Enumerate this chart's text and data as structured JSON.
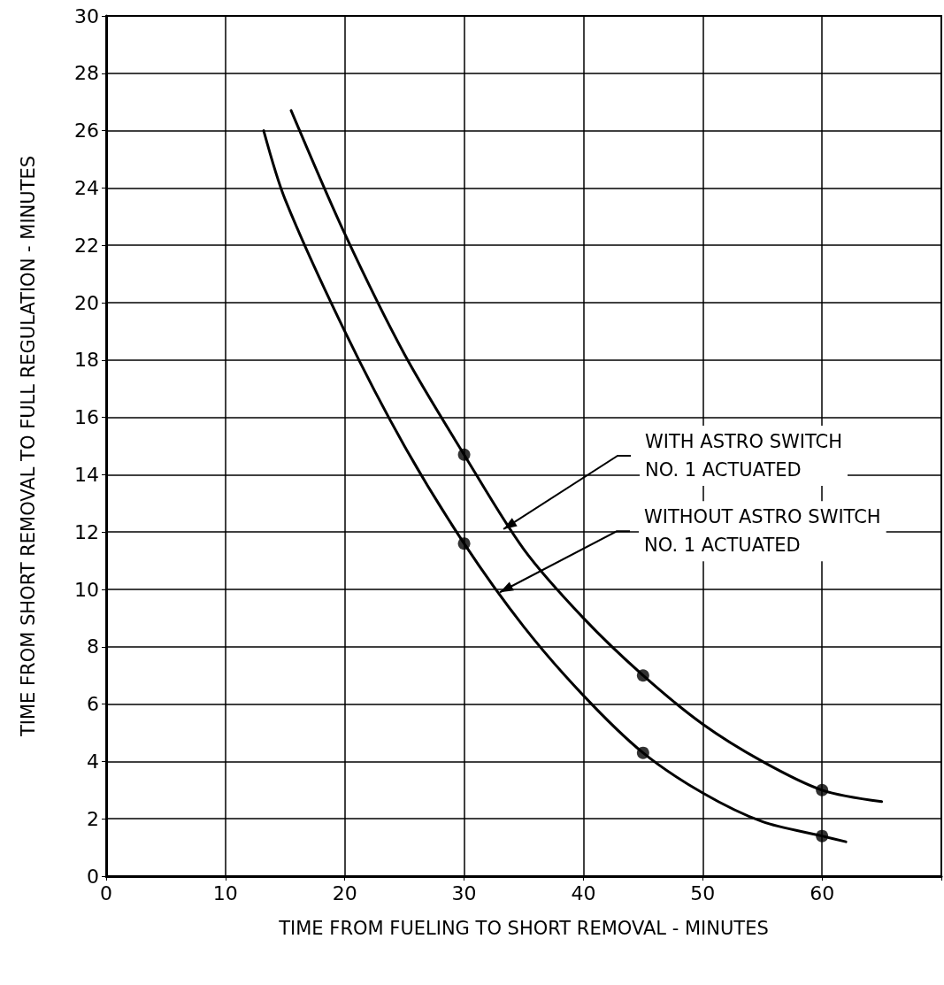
{
  "chart_data": {
    "type": "line",
    "xlabel": "TIME FROM FUELING TO SHORT REMOVAL - MINUTES",
    "ylabel": "TIME FROM SHORT REMOVAL TO FULL REGULATION - MINUTES",
    "xlim": [
      0,
      70
    ],
    "xticks": [
      0,
      10,
      20,
      30,
      40,
      50,
      60,
      {
        "value": 70,
        "label": null
      }
    ],
    "ylim": [
      0,
      30
    ],
    "yticks": [
      0,
      2,
      4,
      6,
      8,
      10,
      12,
      14,
      16,
      18,
      20,
      22,
      24,
      26,
      28,
      30
    ],
    "grid": true,
    "series": [
      {
        "color": "#000000",
        "marker": "none",
        "x": [
          15.5,
          20,
          25,
          30,
          35,
          40,
          45,
          50,
          55,
          60,
          65
        ],
        "values": [
          26.7,
          22.4,
          18.2,
          14.7,
          11.4,
          9.0,
          7.0,
          5.3,
          4.0,
          3.0,
          2.6
        ]
      },
      {
        "color": "#000000",
        "marker": "none",
        "x": [
          13.2,
          15,
          20,
          25,
          30,
          35,
          40,
          45,
          50,
          55,
          60,
          62
        ],
        "values": [
          26.0,
          23.6,
          19.0,
          15.0,
          11.6,
          8.7,
          6.3,
          4.3,
          2.9,
          1.9,
          1.4,
          1.2
        ]
      },
      {
        "type": "scatter",
        "color": "#000000",
        "marker": "circle",
        "x": [
          30,
          45,
          60
        ],
        "values": [
          14.7,
          7.0,
          3.0
        ]
      },
      {
        "type": "scatter",
        "color": "#000000",
        "marker": "circle",
        "x": [
          30,
          45,
          60
        ],
        "values": [
          11.6,
          4.3,
          1.4
        ]
      }
    ],
    "annotations": [
      {
        "text": "WITH ASTRO SWITCH\nNO. 1 ACTUATED",
        "x": 33.3,
        "y": 12.1
      },
      {
        "text": "WITHOUT ASTRO SWITCH\nNO. 1 ACTUATED",
        "x": 33,
        "y": 9.9
      }
    ]
  }
}
